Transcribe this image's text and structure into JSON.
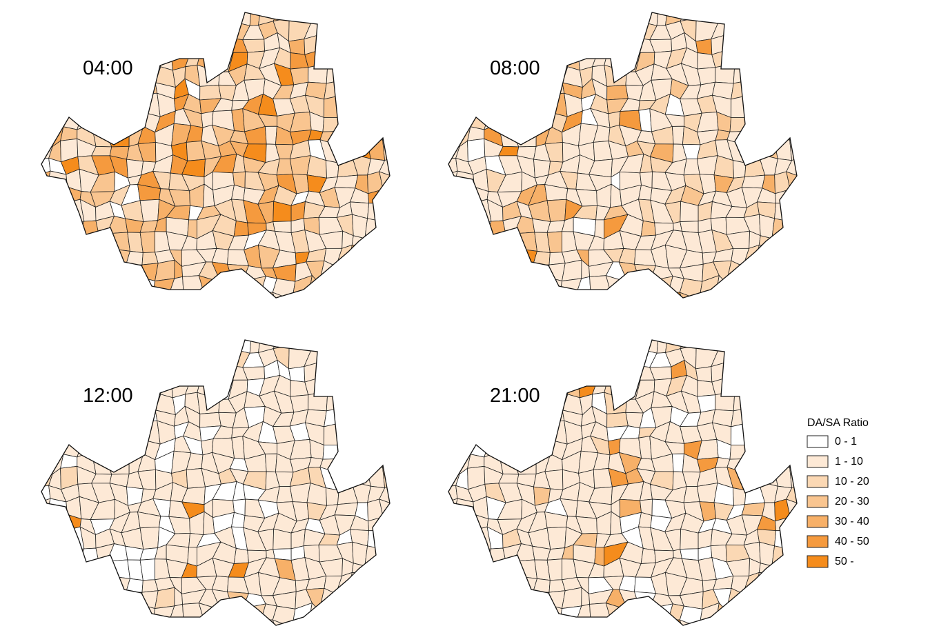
{
  "panels": [
    {
      "label": "04:00"
    },
    {
      "label": "08:00"
    },
    {
      "label": "12:00"
    },
    {
      "label": "21:00"
    }
  ],
  "legend": {
    "title": "DA/SA Ratio",
    "classes": [
      {
        "label": "0 - 1",
        "color": "#ffffff"
      },
      {
        "label": "1 - 10",
        "color": "#fde9d6"
      },
      {
        "label": "10 - 20",
        "color": "#fbd8b4"
      },
      {
        "label": "20 - 30",
        "color": "#f9c590"
      },
      {
        "label": "30 - 40",
        "color": "#f7b068"
      },
      {
        "label": "40 - 50",
        "color": "#f59a3e"
      },
      {
        "label": "50 -",
        "color": "#f58c1c"
      }
    ]
  }
}
